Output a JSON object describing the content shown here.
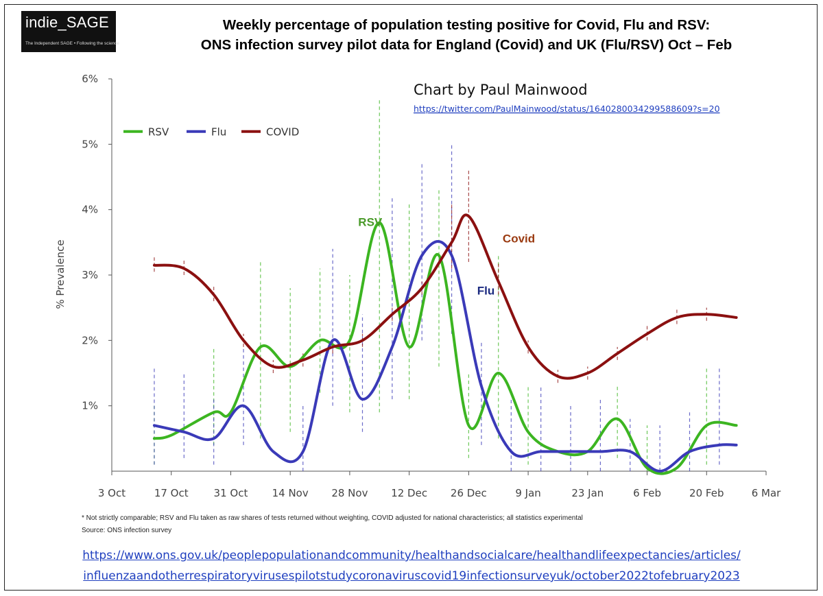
{
  "logo": {
    "name": "indie_SAGE",
    "tagline": "The Independent SAGE • Following the science"
  },
  "title": {
    "line1": "Weekly percentage of population testing positive for Covid, Flu and RSV:",
    "line2": "ONS infection survey pilot data for England (Covid) and UK (Flu/RSV) Oct – Feb"
  },
  "credit": {
    "text": "Chart by Paul Mainwood",
    "link": "https://twitter.com/PaulMainwood/status/1640280034299588609?s=20"
  },
  "footnote": "* Not strictly comparable; RSV and Flu taken as raw shares of tests returned without weighting, COVID adjusted for national characteristics; all statistics experimental",
  "source": "Source: ONS infection survey",
  "ons_link": {
    "line1": "https://www.ons.gov.uk/peoplepopulationandcommunity/healthandsocialcare/healthandlifeexpectancies/articles/",
    "line2": "influenzaandotherrespiratoryvirusespilotstudycoronaviruscovid19infectionsurveyuk/october2022tofebruary2023"
  },
  "colors": {
    "rsv": "#3cb521",
    "flu": "#3a3ab8",
    "covid": "#8b1010",
    "rsv_label": "#4a9a2a",
    "flu_label": "#1b2a80",
    "covid_label": "#9a3a10"
  },
  "chart_data": {
    "type": "line",
    "ylabel": "% Prevalence",
    "ylim": [
      0,
      6
    ],
    "yticks": [
      1,
      2,
      3,
      4,
      5,
      6
    ],
    "ytick_labels": [
      "1%",
      "2%",
      "3%",
      "4%",
      "5%",
      "6%"
    ],
    "xlim_days": [
      0,
      154
    ],
    "xticks_days": [
      0,
      14,
      28,
      42,
      56,
      70,
      84,
      98,
      112,
      126,
      140,
      154
    ],
    "xtick_labels": [
      "3 Oct",
      "17 Oct",
      "31 Oct",
      "14 Nov",
      "28 Nov",
      "12 Dec",
      "26 Dec",
      "9 Jan",
      "23 Jan",
      "6 Feb",
      "20 Feb",
      "6 Mar"
    ],
    "legend": [
      "RSV",
      "Flu",
      "COVID"
    ],
    "annotations": [
      {
        "text": "RSV",
        "series": "RSV",
        "x_day": 58,
        "y": 3.75
      },
      {
        "text": "Covid",
        "series": "COVID",
        "x_day": 92,
        "y": 3.5
      },
      {
        "text": "Flu",
        "series": "Flu",
        "x_day": 86,
        "y": 2.7
      }
    ],
    "series": [
      {
        "name": "RSV",
        "x_days": [
          10,
          14,
          24,
          28,
          35,
          42,
          49,
          56,
          63,
          70,
          77,
          84,
          91,
          98,
          105,
          112,
          119,
          126,
          133,
          140,
          147
        ],
        "values": [
          0.5,
          0.55,
          0.9,
          0.9,
          1.9,
          1.6,
          2.0,
          2.0,
          3.8,
          1.9,
          3.3,
          0.7,
          1.5,
          0.6,
          0.3,
          0.3,
          0.8,
          0.05,
          0.05,
          0.7,
          0.7
        ],
        "ci_low": [
          0.1,
          null,
          0.4,
          null,
          0.5,
          0.6,
          1.2,
          0.9,
          0.9,
          1.1,
          1.6,
          0.2,
          0.5,
          0.1,
          null,
          null,
          0.2,
          0.0,
          null,
          0.1,
          null
        ],
        "ci_high": [
          1.0,
          null,
          1.9,
          null,
          3.2,
          2.8,
          3.1,
          3.0,
          5.7,
          4.1,
          4.3,
          1.5,
          3.3,
          1.3,
          null,
          null,
          1.3,
          0.7,
          null,
          1.6,
          null
        ]
      },
      {
        "name": "Flu",
        "x_days": [
          10,
          17,
          24,
          31,
          38,
          45,
          52,
          59,
          66,
          73,
          80,
          87,
          94,
          101,
          108,
          115,
          122,
          129,
          136,
          143,
          147
        ],
        "values": [
          0.7,
          0.6,
          0.5,
          1.0,
          0.3,
          0.3,
          2.0,
          1.1,
          1.9,
          3.3,
          3.3,
          1.3,
          0.3,
          0.3,
          0.3,
          0.3,
          0.3,
          0.0,
          0.3,
          0.4,
          0.4
        ],
        "ci_low": [
          0.1,
          0.2,
          0.1,
          0.4,
          null,
          0.0,
          1.0,
          0.6,
          1.1,
          2.0,
          2.1,
          0.4,
          0.0,
          0.0,
          0.0,
          0.0,
          0.0,
          0.0,
          0.0,
          0.1,
          null
        ],
        "ci_high": [
          1.6,
          1.5,
          1.1,
          1.9,
          null,
          1.0,
          3.4,
          2.4,
          4.2,
          4.7,
          5.0,
          2.0,
          1.1,
          1.3,
          1.0,
          1.1,
          0.8,
          0.7,
          0.9,
          1.6,
          null
        ]
      },
      {
        "name": "COVID",
        "x_days": [
          10,
          17,
          24,
          31,
          38,
          45,
          52,
          59,
          66,
          73,
          80,
          84,
          91,
          98,
          105,
          112,
          119,
          126,
          133,
          140,
          147
        ],
        "values": [
          3.15,
          3.1,
          2.7,
          2.0,
          1.6,
          1.7,
          1.9,
          2.0,
          2.4,
          2.8,
          3.5,
          3.9,
          2.9,
          1.9,
          1.45,
          1.5,
          1.8,
          2.1,
          2.35,
          2.4,
          2.35
        ],
        "ci_low": [
          3.05,
          3.0,
          2.6,
          1.9,
          1.5,
          1.6,
          1.8,
          1.9,
          2.3,
          2.7,
          3.1,
          3.2,
          2.7,
          1.8,
          1.35,
          1.4,
          1.7,
          2.0,
          2.25,
          2.3,
          null
        ],
        "ci_high": [
          3.3,
          3.25,
          2.85,
          2.1,
          1.7,
          1.8,
          2.0,
          2.1,
          2.5,
          2.9,
          4.1,
          4.6,
          3.2,
          2.0,
          1.55,
          1.6,
          1.9,
          2.25,
          2.5,
          2.5,
          null
        ]
      }
    ]
  }
}
